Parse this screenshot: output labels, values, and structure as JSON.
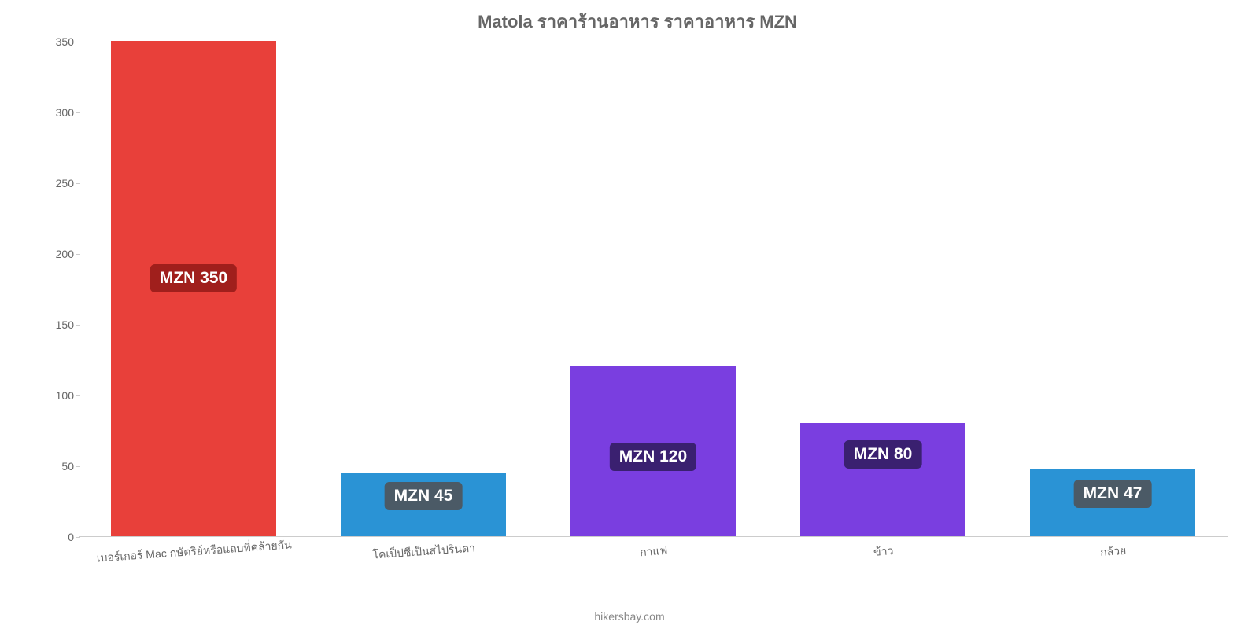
{
  "chart": {
    "type": "bar",
    "title": "Matola ราคาร้านอาหาร ราคาอาหาร MZN",
    "title_fontsize": 22,
    "title_color": "#666666",
    "background_color": "#ffffff",
    "ylim": [
      0,
      350
    ],
    "ytick_step": 50,
    "yticks": [
      0,
      50,
      100,
      150,
      200,
      250,
      300,
      350
    ],
    "axis_color": "#cccccc",
    "label_color": "#666666",
    "label_fontsize": 14,
    "bar_width": 0.72,
    "categories": [
      "เบอร์เกอร์ Mac กษัตริย์หรือแถบที่คล้ายกัน",
      "โคเป็ปซีเป็นสไปรินดา",
      "กาแฟ",
      "ข้าว",
      "กล้วย"
    ],
    "values": [
      350,
      45,
      120,
      80,
      47
    ],
    "bar_colors": [
      "#e8403a",
      "#2a93d5",
      "#7a3ee0",
      "#7a3ee0",
      "#2a93d5"
    ],
    "value_labels": [
      "MZN 350",
      "MZN 45",
      "MZN 120",
      "MZN 80",
      "MZN 47"
    ],
    "badge_bg_colors": [
      "#a01f1c",
      "#4b5a66",
      "#3a2070",
      "#3a2070",
      "#4b5a66"
    ],
    "badge_text_color": "#ffffff",
    "badge_fontsize": 21,
    "attribution": "hikersbay.com",
    "attribution_color": "#888888"
  }
}
